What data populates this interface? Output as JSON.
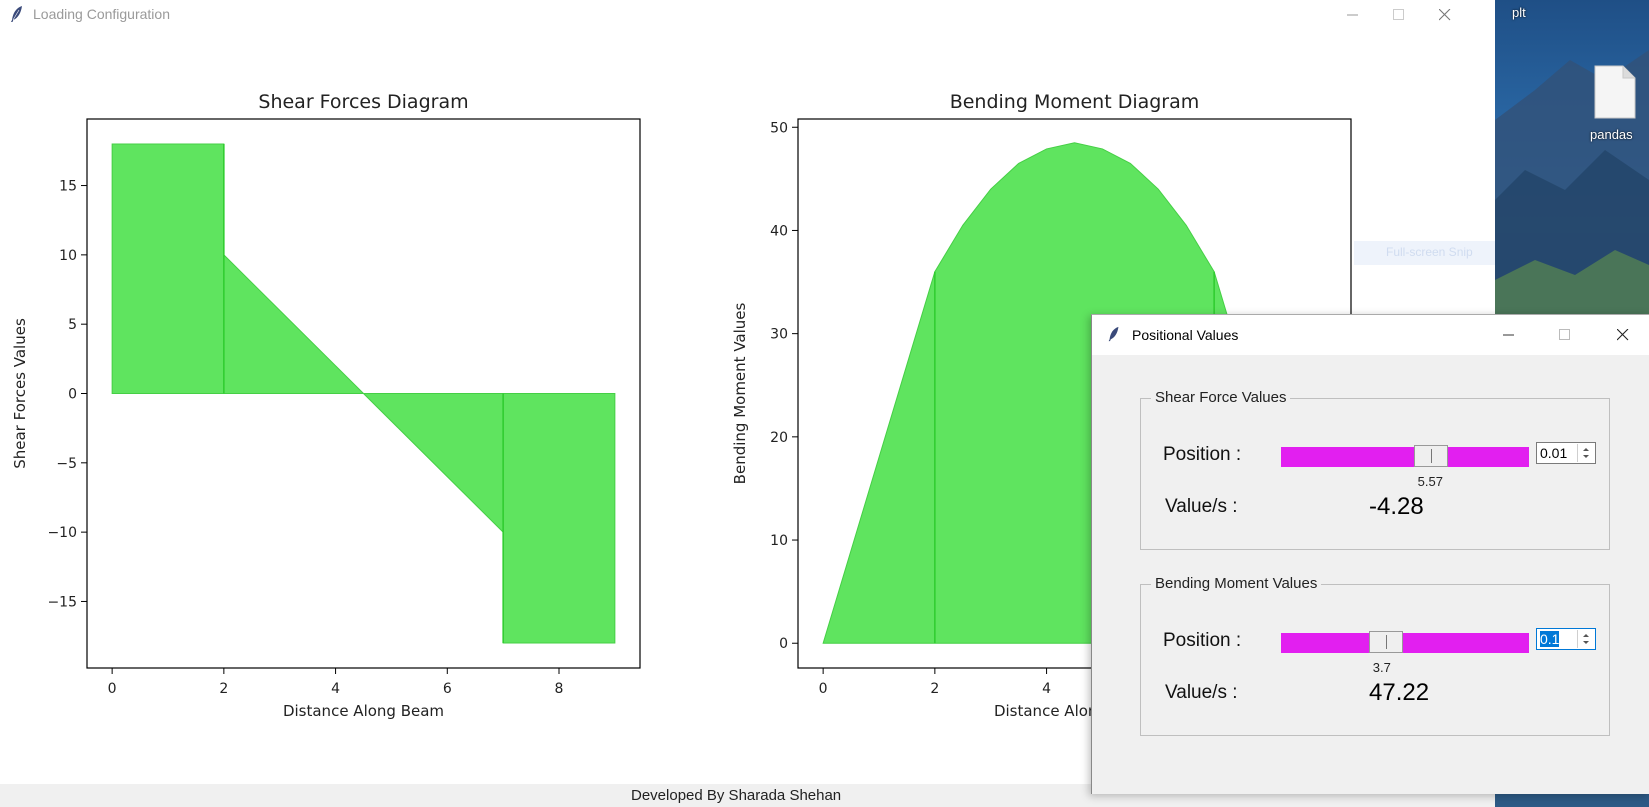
{
  "main_window": {
    "title": "Loading Configuration",
    "footer": "Developed By Sharada Shehan"
  },
  "desktop": {
    "icons": [
      {
        "label": "plt",
        "icon": "file-icon"
      },
      {
        "label": "pandas",
        "icon": "file-icon"
      }
    ]
  },
  "snip_hint": "Full-screen Snip",
  "chart_data": [
    {
      "type": "area",
      "title": "Shear Forces Diagram",
      "xlabel": "Distance Along Beam",
      "ylabel": "Shear Forces Values",
      "xlim": [
        -0.45,
        9.45
      ],
      "ylim": [
        -19.8,
        19.8
      ],
      "xticks": [
        0,
        2,
        4,
        6,
        8
      ],
      "yticks": [
        -15,
        -10,
        -5,
        0,
        5,
        10,
        15
      ],
      "color": "#5fe45f",
      "x": [
        0,
        0,
        2,
        2,
        4.5,
        7,
        7,
        9,
        9
      ],
      "y": [
        0,
        18,
        18,
        10,
        0,
        -10,
        -18,
        -18,
        0
      ],
      "dividers": [
        2,
        7
      ]
    },
    {
      "type": "area",
      "title": "Bending Moment Diagram",
      "xlabel": "Distance Along Beam",
      "ylabel": "Bending Moment Values",
      "xlim": [
        -0.45,
        9.45
      ],
      "ylim": [
        -2.4,
        50.8
      ],
      "xticks": [
        0,
        2,
        4,
        6,
        8
      ],
      "yticks": [
        0,
        10,
        20,
        30,
        40,
        50
      ],
      "color": "#5fe45f",
      "x": [
        0,
        2,
        2.5,
        3,
        3.5,
        4,
        4.5,
        5,
        5.5,
        6,
        6.5,
        7,
        7.5,
        8,
        8.5,
        9
      ],
      "y": [
        0,
        36,
        40.5,
        44,
        46.5,
        47.9,
        48.5,
        47.9,
        46.5,
        44,
        40.5,
        36,
        27,
        18,
        9,
        0
      ],
      "dividers": [
        2,
        7
      ]
    }
  ],
  "popup": {
    "title": "Positional Values",
    "shear": {
      "group_label": "Shear Force Values",
      "position_label": "Position :",
      "slider_value": "5.57",
      "slider_fraction": 0.62,
      "step": "0.01",
      "value_label": "Value/s :",
      "value": "-4.28"
    },
    "moment": {
      "group_label": "Bending Moment Values",
      "position_label": "Position :",
      "slider_value": "3.7",
      "slider_fraction": 0.41,
      "step": "0.1",
      "value_label": "Value/s :",
      "value": "47.22"
    }
  }
}
